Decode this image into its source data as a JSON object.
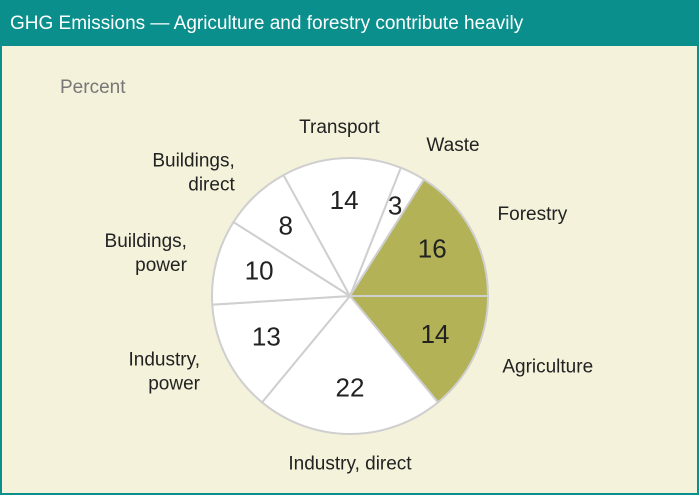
{
  "chart_data": {
    "type": "pie",
    "title": "GHG Emissions — Agriculture and forestry contribute heavily",
    "subtitle": "Percent",
    "categories": [
      "Waste",
      "Forestry",
      "Agriculture",
      "Industry, direct",
      "Industry, power",
      "Buildings, power",
      "Buildings, direct",
      "Transport"
    ],
    "values": [
      3,
      16,
      14,
      22,
      13,
      10,
      8,
      14
    ],
    "colors": [
      "#ffffff",
      "#b3b256",
      "#b3b256",
      "#ffffff",
      "#ffffff",
      "#ffffff",
      "#ffffff",
      "#ffffff"
    ]
  }
}
